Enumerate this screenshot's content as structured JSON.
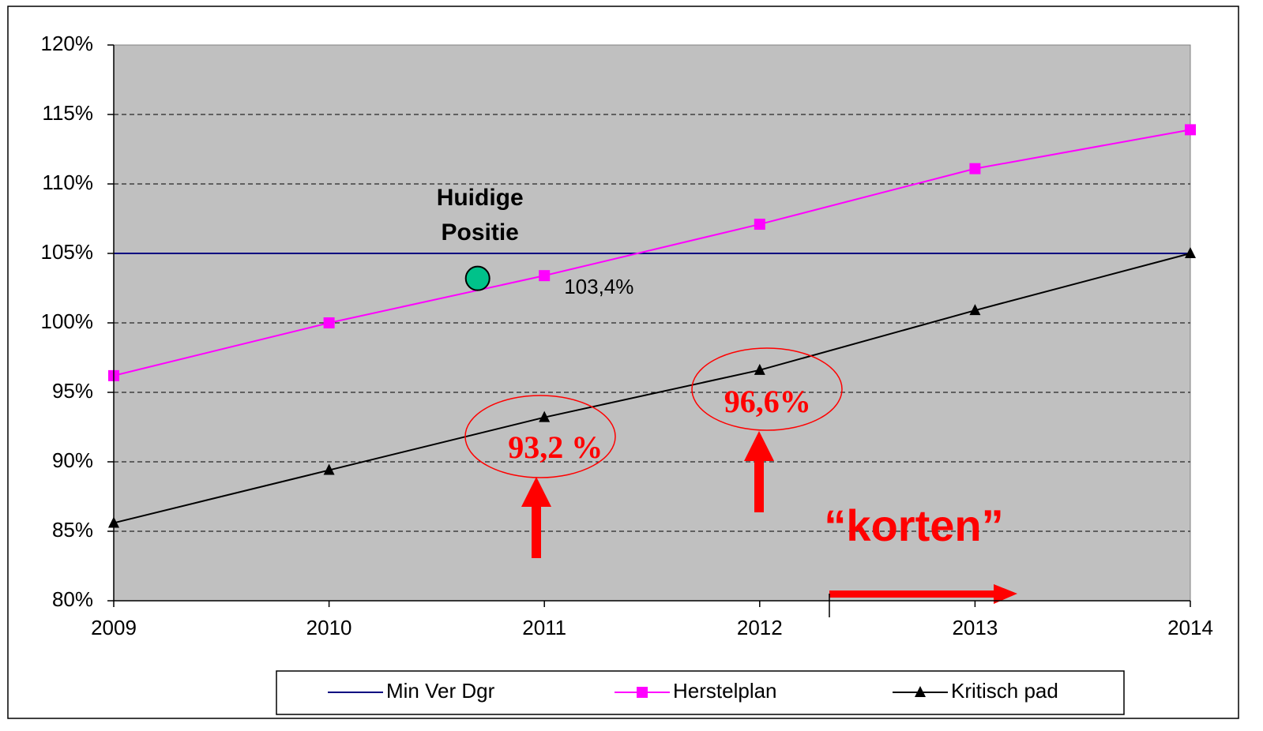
{
  "chart_data": {
    "type": "line",
    "x": [
      2009,
      2010,
      2011,
      2012,
      2013,
      2014
    ],
    "xlim": [
      2009,
      2014
    ],
    "xticks": [
      2009,
      2010,
      2011,
      2012,
      2013,
      2014
    ],
    "ylim": [
      80,
      120
    ],
    "yticks": [
      {
        "value": 80,
        "label": "80%"
      },
      {
        "value": 85,
        "label": "85%"
      },
      {
        "value": 90,
        "label": "90%"
      },
      {
        "value": 95,
        "label": "95%"
      },
      {
        "value": 100,
        "label": "100%"
      },
      {
        "value": 105,
        "label": "105%"
      },
      {
        "value": 110,
        "label": "110%"
      },
      {
        "value": 115,
        "label": "115%"
      },
      {
        "value": 120,
        "label": "120%"
      }
    ],
    "grid": true,
    "series": [
      {
        "name": "Min Ver Dgr",
        "color": "#000080",
        "marker": "none",
        "values": [
          105,
          105,
          105,
          105,
          105,
          105
        ]
      },
      {
        "name": "Herstelplan",
        "color": "#ff00ff",
        "marker": "square",
        "values": [
          96.2,
          100,
          103.4,
          107.1,
          111.1,
          113.9
        ],
        "value_labels": [
          null,
          null,
          "103,4%",
          null,
          null,
          null
        ]
      },
      {
        "name": "Kritisch pad",
        "color": "#000000",
        "marker": "triangle",
        "values": [
          85.6,
          89.4,
          93.2,
          96.6,
          100.9,
          105
        ],
        "value_labels": [
          null,
          null,
          "93,2 %",
          "96,6%",
          null,
          null
        ]
      }
    ],
    "annotations": [
      {
        "text": "Huidige Positie",
        "x": 2010.69,
        "y": 103.2,
        "color": "#00c28a"
      },
      {
        "text": "“korten”"
      }
    ]
  }
}
